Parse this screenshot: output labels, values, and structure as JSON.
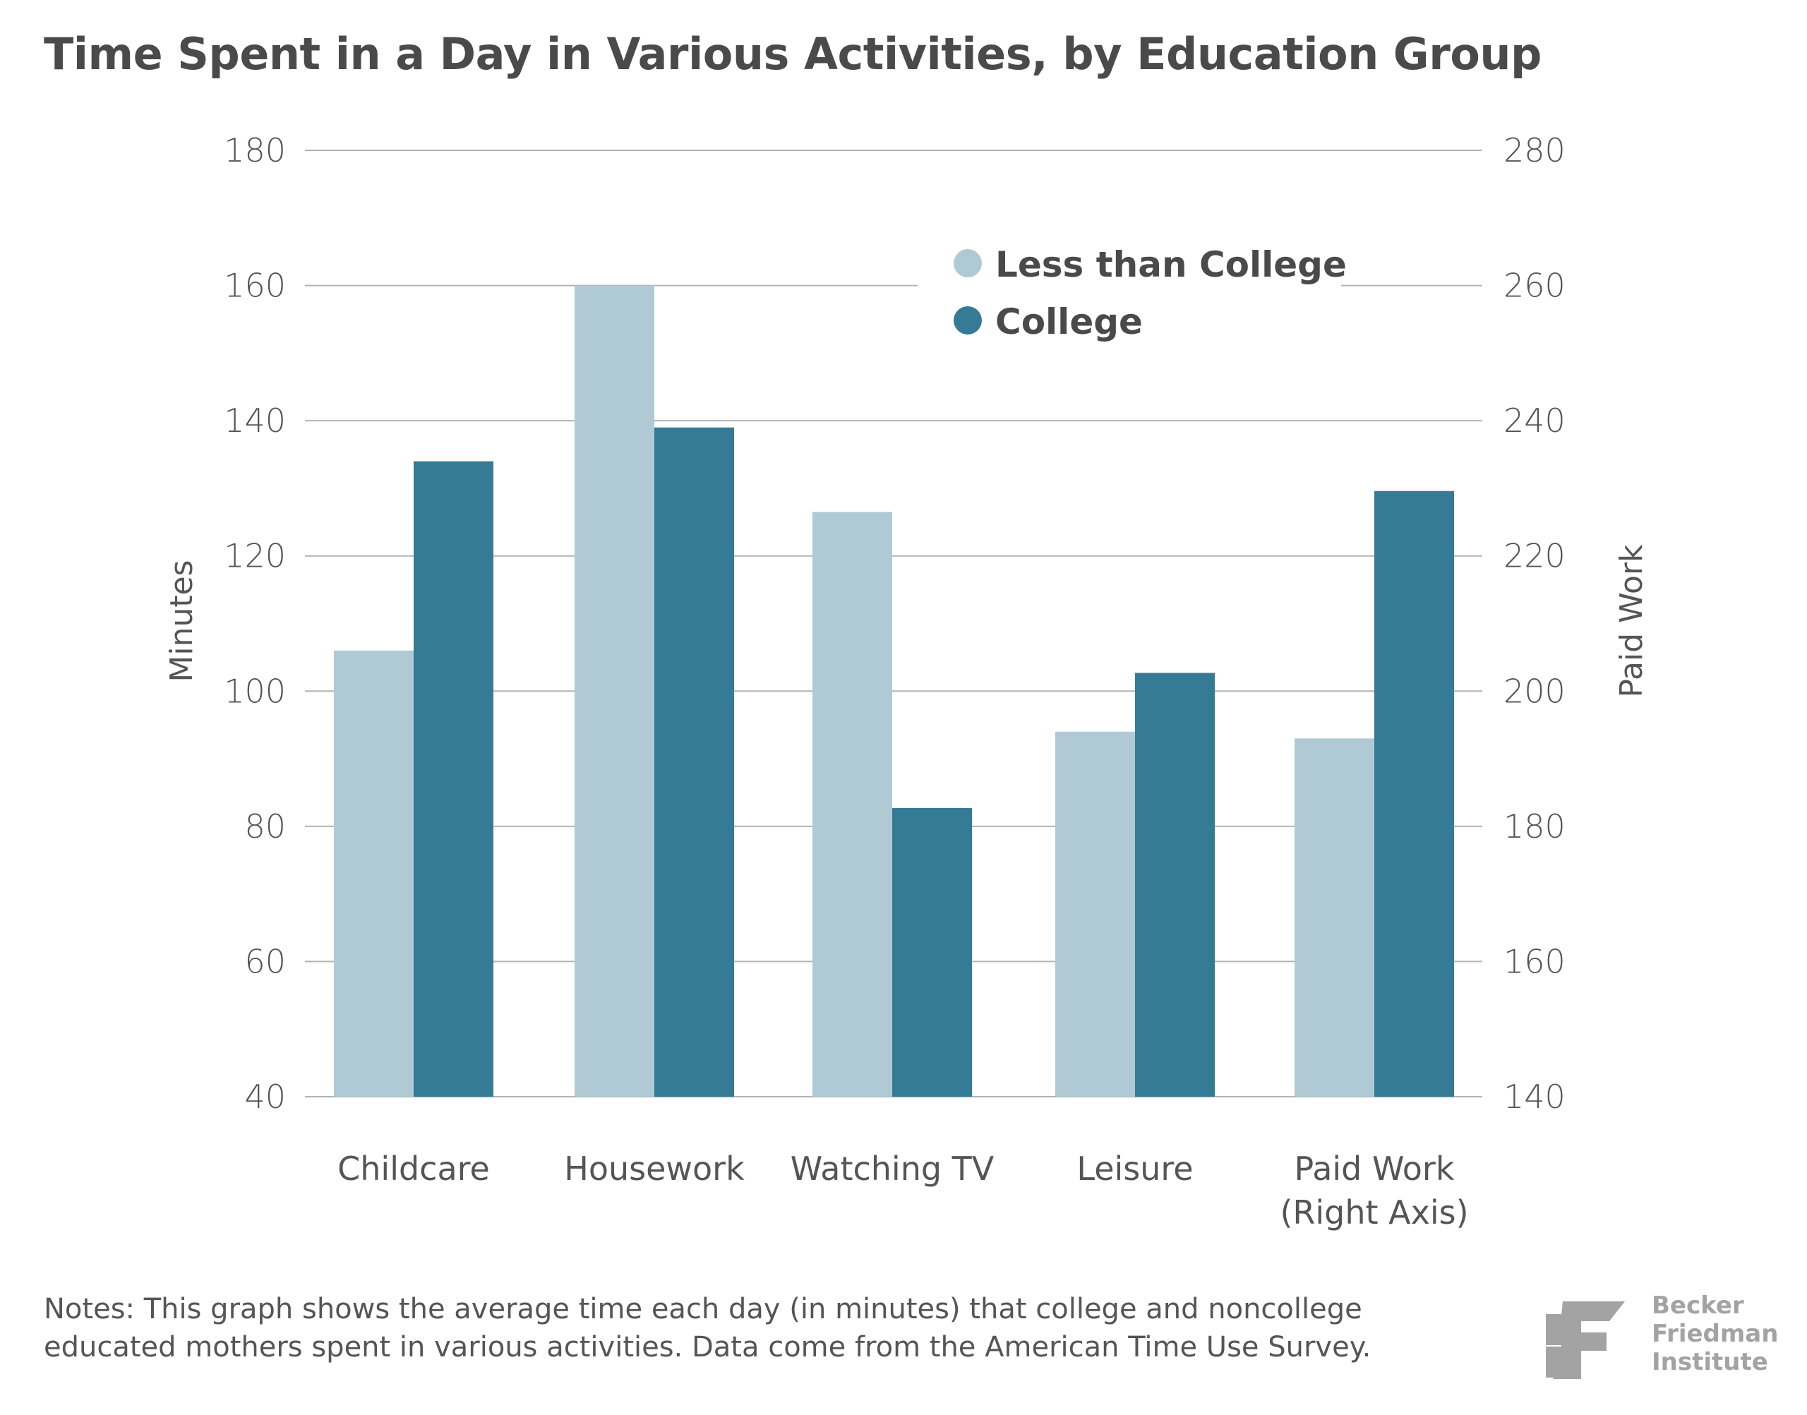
{
  "title": "Time Spent in a Day in Various Activities, by Education Group",
  "notes": [
    "Notes: This graph shows the average time each day (in minutes) that college and noncollege",
    "educated mothers spent in various activities. Data come from the American Time Use Survey."
  ],
  "logo": {
    "mark": "BF",
    "lines": [
      "Becker",
      "Friedman",
      "Institute"
    ]
  },
  "colors": {
    "less_than_college": "#afcad5",
    "college": "#357b95",
    "gridline": "#b3b3b3",
    "text": "#555555"
  },
  "chart_data": {
    "type": "bar",
    "title": "Time Spent in a Day in Various Activities, by Education Group",
    "categories": [
      "Childcare",
      "Housework",
      "Watching TV",
      "Leisure",
      "Paid Work (Right Axis)"
    ],
    "category_label_lines": [
      [
        "Childcare"
      ],
      [
        "Housework"
      ],
      [
        "Watching TV"
      ],
      [
        "Leisure"
      ],
      [
        "Paid Work",
        "(Right Axis)"
      ]
    ],
    "series": [
      {
        "name": "Less than College",
        "values": [
          106,
          160,
          126.5,
          94,
          193
        ],
        "axis": [
          "left",
          "left",
          "left",
          "left",
          "right"
        ]
      },
      {
        "name": "College",
        "values": [
          134,
          139,
          82.7,
          102.7,
          229.6
        ],
        "axis": [
          "left",
          "left",
          "left",
          "left",
          "right"
        ]
      }
    ],
    "ylabel": "Minutes",
    "ylabel_right": "Paid Work",
    "ylim": [
      40,
      180
    ],
    "ylim_right": [
      140,
      280
    ],
    "yticks": [
      40,
      60,
      80,
      100,
      120,
      140,
      160,
      180
    ],
    "yticks_right": [
      140,
      160,
      180,
      200,
      220,
      240,
      260,
      280
    ],
    "grid": true,
    "legend_position": "top-right"
  }
}
